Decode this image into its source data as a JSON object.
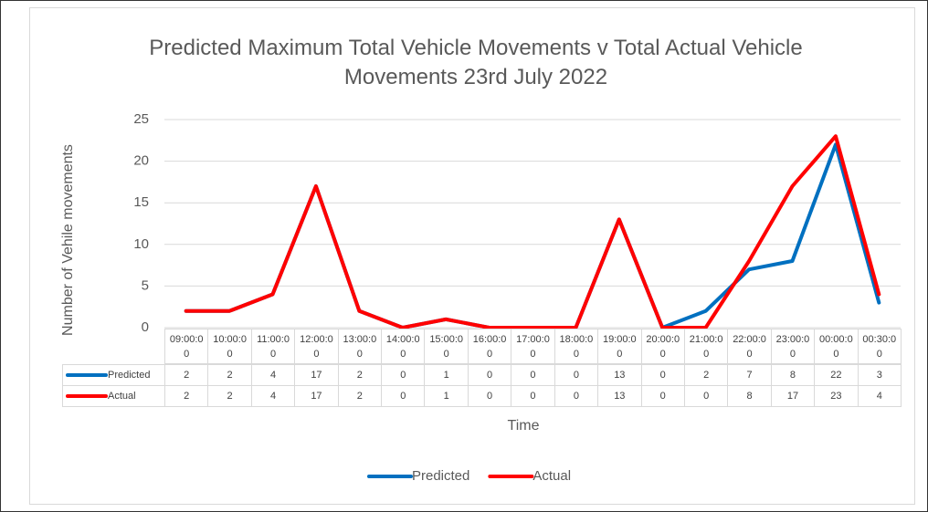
{
  "chart_data": {
    "type": "line",
    "title": "Predicted Maximum Total Vehicle Movements v Total Actual Vehicle Movements 23rd July 2022",
    "x_label": "Time",
    "y_label": "Number of Vehile movements",
    "categories": [
      "09:00:00",
      "10:00:00",
      "11:00:00",
      "12:00:00",
      "13:00:00",
      "14:00:00",
      "15:00:00",
      "16:00:00",
      "17:00:00",
      "18:00:00",
      "19:00:00",
      "20:00:00",
      "21:00:00",
      "22:00:00",
      "23:00:00",
      "00:00:00",
      "00:30:00"
    ],
    "series": [
      {
        "name": "Predicted",
        "color": "#0070c0",
        "values": [
          2,
          2,
          4,
          17,
          2,
          0,
          1,
          0,
          0,
          0,
          13,
          0,
          2,
          7,
          8,
          22,
          3
        ]
      },
      {
        "name": "Actual",
        "color": "#ff0000",
        "values": [
          2,
          2,
          4,
          17,
          2,
          0,
          1,
          0,
          0,
          0,
          13,
          0,
          0,
          8,
          17,
          23,
          4
        ]
      }
    ],
    "ylim": [
      0,
      25
    ],
    "yticks": [
      0,
      5,
      10,
      15,
      20,
      25
    ],
    "grid": true,
    "legend": "bottom",
    "data_table": true
  }
}
